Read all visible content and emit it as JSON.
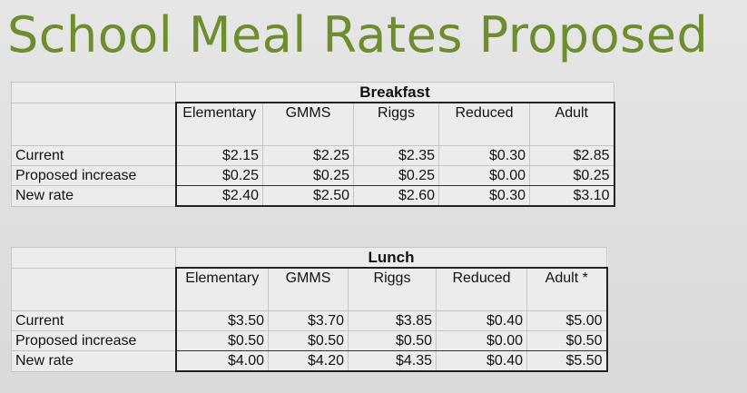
{
  "title": "School Meal Rates Proposed",
  "tables": [
    {
      "meal": "Breakfast",
      "columns": [
        "Elementary",
        "GMMS",
        "Riggs",
        "Reduced",
        "Adult"
      ],
      "rows": [
        {
          "label": "Current",
          "values": [
            "$2.15",
            "$2.25",
            "$2.35",
            "$0.30",
            "$2.85"
          ]
        },
        {
          "label": "Proposed increase",
          "values": [
            "$0.25",
            "$0.25",
            "$0.25",
            "$0.00",
            "$0.25"
          ]
        },
        {
          "label": "New rate",
          "values": [
            "$2.40",
            "$2.50",
            "$2.60",
            "$0.30",
            "$3.10"
          ]
        }
      ]
    },
    {
      "meal": "Lunch",
      "columns": [
        "Elementary",
        "GMMS",
        "Riggs",
        "Reduced",
        "Adult *"
      ],
      "rows": [
        {
          "label": "Current",
          "values": [
            "$3.50",
            "$3.70",
            "$3.85",
            "$0.40",
            "$5.00"
          ]
        },
        {
          "label": "Proposed increase",
          "values": [
            "$0.50",
            "$0.50",
            "$0.50",
            "$0.00",
            "$0.50"
          ]
        },
        {
          "label": "New rate",
          "values": [
            "$4.00",
            "$4.20",
            "$4.35",
            "$0.40",
            "$5.50"
          ]
        }
      ]
    }
  ]
}
